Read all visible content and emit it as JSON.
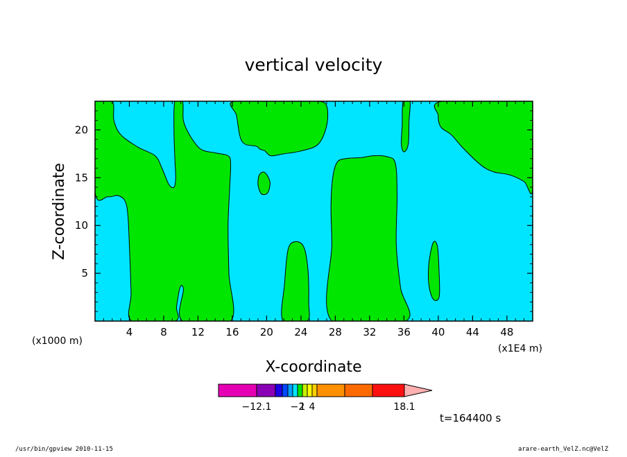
{
  "chart_data": {
    "type": "heatmap",
    "title": "vertical velocity",
    "xlabel": "X-coordinate",
    "ylabel": "Z-coordinate",
    "x_units_left": "(x1000 m)",
    "x_units_right": "(x1E4 m)",
    "xlim": [
      0,
      51
    ],
    "ylim": [
      0,
      23
    ],
    "x_ticks": [
      4,
      8,
      12,
      16,
      20,
      24,
      28,
      32,
      36,
      40,
      44,
      48
    ],
    "y_ticks": [
      5,
      10,
      15,
      20
    ],
    "colors": {
      "negative": "#00e5ff",
      "positive": "#00e600",
      "contour": "#000000"
    },
    "colorbar": {
      "colors": [
        "#e600b4",
        "#8a00b4",
        "#1e00e6",
        "#0048ff",
        "#00a0ff",
        "#00e5ff",
        "#00e600",
        "#c8f000",
        "#ffff00",
        "#ffd000",
        "#ff9000",
        "#ff6a00",
        "#ff1010",
        "#ff7070",
        "#ffb0b0"
      ],
      "labels": [
        {
          "text": "−12.1",
          "index": 0
        },
        {
          "text": "−2",
          "index": 5
        },
        {
          "text": "1",
          "index": 6
        },
        {
          "text": "4",
          "index": 8
        },
        {
          "text": "18.1",
          "index": 13
        }
      ]
    },
    "time_label": "t=164400 s",
    "regions": [
      {
        "name": "region-positive-1",
        "sign": "positive",
        "points": [
          [
            0,
            23
          ],
          [
            2,
            23
          ],
          [
            2.2,
            21
          ],
          [
            3,
            19.5
          ],
          [
            5,
            18.2
          ],
          [
            7,
            17.3
          ],
          [
            7.8,
            16
          ],
          [
            8.6,
            14.3
          ],
          [
            9.2,
            14
          ],
          [
            9.4,
            15
          ],
          [
            9.3,
            17
          ],
          [
            9.2,
            20
          ],
          [
            9.3,
            23
          ],
          [
            10.2,
            23
          ],
          [
            10.3,
            21
          ],
          [
            11,
            19.5
          ],
          [
            12.3,
            18
          ],
          [
            14,
            17.6
          ],
          [
            15.5,
            17.3
          ],
          [
            15.8,
            16.5
          ],
          [
            15.7,
            14
          ],
          [
            15.5,
            10
          ],
          [
            15.6,
            5
          ],
          [
            15.8,
            0
          ],
          [
            10.2,
            0
          ],
          [
            10.3,
            3.3
          ],
          [
            9.9,
            3.5
          ],
          [
            9.5,
            1.5
          ],
          [
            9.3,
            0
          ],
          [
            4.3,
            0
          ],
          [
            4.2,
            3
          ],
          [
            4,
            8
          ],
          [
            3.7,
            12
          ],
          [
            2.8,
            13.1
          ],
          [
            1.5,
            13
          ],
          [
            0,
            13.5
          ]
        ]
      },
      {
        "name": "region-positive-2",
        "sign": "positive",
        "points": [
          [
            16.2,
            23
          ],
          [
            23,
            23
          ],
          [
            26,
            23
          ],
          [
            27,
            22.5
          ],
          [
            27,
            20.5
          ],
          [
            26,
            18.5
          ],
          [
            24,
            17.8
          ],
          [
            22,
            17.5
          ],
          [
            20.5,
            17.3
          ],
          [
            19.8,
            17.8
          ],
          [
            19.2,
            18
          ],
          [
            18.8,
            18.3
          ],
          [
            17.5,
            18.5
          ],
          [
            16.9,
            19.3
          ],
          [
            16.5,
            21.5
          ]
        ]
      },
      {
        "name": "region-positive-3",
        "sign": "positive",
        "points": [
          [
            19.1,
            15.2
          ],
          [
            19.6,
            15.6
          ],
          [
            20.1,
            15.2
          ],
          [
            20.4,
            14.4
          ],
          [
            20.1,
            13.4
          ],
          [
            19.4,
            13.3
          ],
          [
            19.0,
            14.2
          ]
        ]
      },
      {
        "name": "region-positive-4",
        "sign": "positive",
        "points": [
          [
            21.9,
            0
          ],
          [
            22.1,
            4
          ],
          [
            22.5,
            7.5
          ],
          [
            23.3,
            8.3
          ],
          [
            24.3,
            7.8
          ],
          [
            24.8,
            5.5
          ],
          [
            24.9,
            2
          ],
          [
            24.7,
            0
          ]
        ]
      },
      {
        "name": "region-positive-5",
        "sign": "positive",
        "points": [
          [
            27.6,
            0
          ],
          [
            27.6,
            8
          ],
          [
            27.5,
            12
          ],
          [
            27.7,
            15
          ],
          [
            28.2,
            16.6
          ],
          [
            29.2,
            17
          ],
          [
            31,
            17.1
          ],
          [
            32.4,
            17.3
          ],
          [
            34,
            17.2
          ],
          [
            35,
            16.5
          ],
          [
            35.2,
            13
          ],
          [
            35.1,
            8
          ],
          [
            35.6,
            3.5
          ],
          [
            36.2,
            0
          ]
        ]
      },
      {
        "name": "region-positive-6",
        "sign": "positive",
        "points": [
          [
            35.9,
            23
          ],
          [
            36.7,
            23
          ],
          [
            36.6,
            21
          ],
          [
            36.5,
            18.5
          ],
          [
            36.0,
            17.7
          ],
          [
            35.7,
            18.5
          ],
          [
            35.8,
            20.5
          ]
        ]
      },
      {
        "name": "region-positive-7",
        "sign": "positive",
        "points": [
          [
            38.9,
            6
          ],
          [
            39.4,
            8.2
          ],
          [
            39.9,
            7.8
          ],
          [
            40.1,
            5
          ],
          [
            40.1,
            2.5
          ],
          [
            39.4,
            2.3
          ],
          [
            38.9,
            3.8
          ]
        ]
      },
      {
        "name": "region-positive-8",
        "sign": "positive",
        "points": [
          [
            40.5,
            23
          ],
          [
            51,
            23
          ],
          [
            51,
            13.8
          ],
          [
            50,
            14.6
          ],
          [
            48.3,
            15.3
          ],
          [
            46.5,
            15.6
          ],
          [
            45,
            16.3
          ],
          [
            43,
            18
          ],
          [
            41.5,
            19.5
          ],
          [
            40.3,
            20.3
          ],
          [
            40,
            21.5
          ]
        ]
      }
    ]
  },
  "footer": {
    "left": "/usr/bin/gpview   2010-11-15",
    "right": "arare-earth_VelZ.nc@VelZ"
  }
}
